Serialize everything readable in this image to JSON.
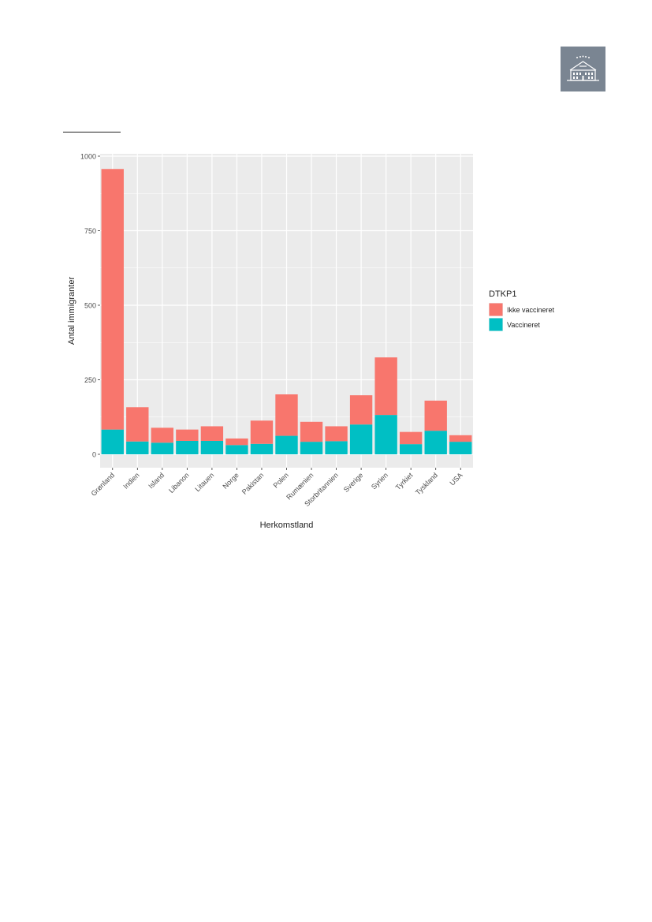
{
  "colors": {
    "panel": "#EBEBEB",
    "grid": "#FFFFFF",
    "ikke_vaccineret": "#F8766D",
    "vaccineret": "#00BFC4",
    "text": "#4D4D4D",
    "title_text": "#222222"
  },
  "chart_data": {
    "type": "bar",
    "stacked": true,
    "xlabel": "Herkomstland",
    "ylabel": "Antal immigranter",
    "ylim": [
      0,
      1000
    ],
    "yticks": [
      0,
      250,
      500,
      750,
      1000
    ],
    "grid": true,
    "legend": {
      "title": "DTKP1",
      "position": "right",
      "entries": [
        "Ikke vaccineret",
        "Vaccineret"
      ]
    },
    "categories": [
      "Grønland",
      "Indien",
      "Island",
      "Libanon",
      "Litauen",
      "Norge",
      "Pakistan",
      "Polen",
      "Rumænien",
      "Storbritannien",
      "Sverige",
      "Syrien",
      "Tyrkiet",
      "Tyskland",
      "USA"
    ],
    "series": [
      {
        "name": "Vaccineret",
        "values": [
          83,
          43,
          39,
          45,
          45,
          31,
          35,
          62,
          42,
          44,
          100,
          132,
          34,
          79,
          42
        ]
      },
      {
        "name": "Ikke vaccineret",
        "values": [
          874,
          115,
          50,
          38,
          49,
          22,
          78,
          139,
          67,
          50,
          98,
          193,
          41,
          101,
          22
        ]
      }
    ]
  }
}
